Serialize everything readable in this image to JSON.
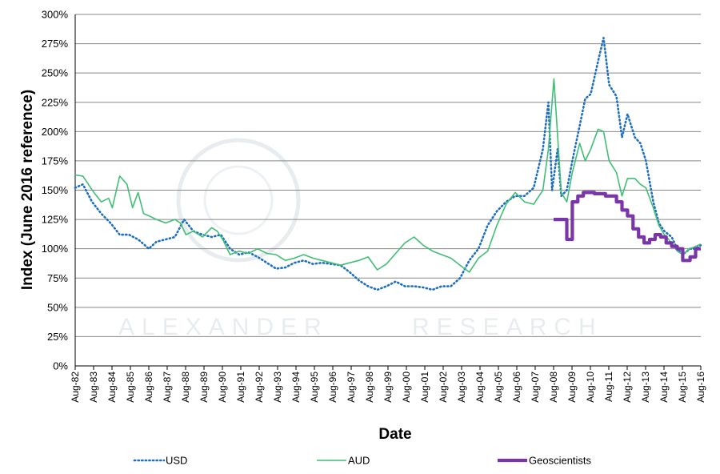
{
  "colors": {
    "usd": "#1f6fc0",
    "aud": "#3fbf74",
    "geo": "#7a35a8",
    "grid": "#888888",
    "watermark": "#e8ecef"
  },
  "watermark": {
    "left": "ALEXANDER",
    "right": "RESEARCH"
  },
  "chart_data": {
    "type": "line",
    "title": "",
    "xlabel": "Date",
    "ylabel": "Index (June  2016 reference)",
    "ylim": [
      0,
      300
    ],
    "yticks": [
      0,
      25,
      50,
      75,
      100,
      125,
      150,
      175,
      200,
      225,
      250,
      275,
      300
    ],
    "ytick_labels": [
      "0%",
      "25%",
      "50%",
      "75%",
      "100%",
      "125%",
      "150%",
      "175%",
      "200%",
      "225%",
      "250%",
      "275%",
      "300%"
    ],
    "xlim": [
      1982.583,
      2016.583
    ],
    "xtick_labels": [
      "Aug-82",
      "Aug-83",
      "Aug-84",
      "Aug-85",
      "Aug-86",
      "Aug-87",
      "Aug-88",
      "Aug-89",
      "Aug-90",
      "Aug-91",
      "Aug-92",
      "Aug-93",
      "Aug-94",
      "Aug-95",
      "Aug-96",
      "Aug-97",
      "Aug-98",
      "Aug-99",
      "Aug-00",
      "Aug-01",
      "Aug-02",
      "Aug-03",
      "Aug-04",
      "Aug-05",
      "Aug-06",
      "Aug-07",
      "Aug-08",
      "Aug-09",
      "Aug-10",
      "Aug-11",
      "Aug-12",
      "Aug-13",
      "Aug-14",
      "Aug-15",
      "Aug-16"
    ],
    "grid": true,
    "legend_position": "bottom",
    "series": [
      {
        "name": "USD",
        "style": "dotted",
        "x": [
          1982.58,
          1983.0,
          1983.5,
          1984.0,
          1984.5,
          1985.0,
          1985.5,
          1986.0,
          1986.3,
          1986.58,
          1987.0,
          1987.5,
          1988.0,
          1988.5,
          1989.0,
          1989.5,
          1990.0,
          1990.5,
          1991.0,
          1991.5,
          1992.0,
          1992.5,
          1993.0,
          1993.5,
          1994.0,
          1994.5,
          1995.0,
          1995.5,
          1996.0,
          1996.5,
          1997.0,
          1997.5,
          1998.0,
          1998.5,
          1999.0,
          1999.5,
          2000.0,
          2000.5,
          2001.0,
          2001.5,
          2002.0,
          2002.5,
          2003.0,
          2003.5,
          2004.0,
          2004.5,
          2005.0,
          2005.5,
          2006.0,
          2006.5,
          2007.0,
          2007.5,
          2008.0,
          2008.3,
          2008.5,
          2008.8,
          2009.0,
          2009.3,
          2009.6,
          2010.0,
          2010.3,
          2010.6,
          2011.0,
          2011.3,
          2011.6,
          2012.0,
          2012.3,
          2012.6,
          2013.0,
          2013.3,
          2013.6,
          2014.0,
          2014.3,
          2014.6,
          2015.0,
          2015.3,
          2015.6,
          2016.0,
          2016.3,
          2016.58
        ],
        "values": [
          152,
          155,
          140,
          130,
          122,
          112,
          112,
          108,
          104,
          100,
          106,
          108,
          110,
          125,
          115,
          112,
          110,
          112,
          100,
          95,
          97,
          93,
          88,
          83,
          84,
          88,
          90,
          87,
          88,
          87,
          86,
          80,
          73,
          68,
          65,
          68,
          72,
          68,
          68,
          67,
          65,
          68,
          68,
          75,
          90,
          100,
          120,
          132,
          140,
          145,
          145,
          152,
          185,
          225,
          150,
          185,
          145,
          150,
          175,
          205,
          228,
          232,
          260,
          280,
          240,
          230,
          195,
          215,
          195,
          190,
          175,
          140,
          122,
          115,
          110,
          100,
          95,
          100,
          100,
          103
        ]
      },
      {
        "name": "AUD",
        "style": "solid",
        "x": [
          1982.58,
          1983.0,
          1983.3,
          1983.6,
          1984.0,
          1984.4,
          1984.6,
          1985.0,
          1985.4,
          1985.7,
          1986.0,
          1986.3,
          1986.6,
          1987.0,
          1987.5,
          1988.0,
          1988.3,
          1988.6,
          1989.0,
          1989.5,
          1990.0,
          1990.3,
          1990.6,
          1991.0,
          1991.5,
          1992.0,
          1992.5,
          1993.0,
          1993.5,
          1994.0,
          1994.5,
          1995.0,
          1995.5,
          1996.0,
          1996.5,
          1997.0,
          1997.5,
          1998.0,
          1998.5,
          1999.0,
          1999.5,
          2000.0,
          2000.5,
          2001.0,
          2001.5,
          2002.0,
          2002.5,
          2003.0,
          2003.5,
          2004.0,
          2004.5,
          2005.0,
          2005.5,
          2006.0,
          2006.5,
          2007.0,
          2007.5,
          2008.0,
          2008.3,
          2008.6,
          2009.0,
          2009.3,
          2009.6,
          2010.0,
          2010.3,
          2010.6,
          2011.0,
          2011.3,
          2011.6,
          2012.0,
          2012.3,
          2012.6,
          2013.0,
          2013.3,
          2013.6,
          2014.0,
          2014.3,
          2014.6,
          2015.0,
          2015.3,
          2015.6,
          2016.0,
          2016.3,
          2016.58
        ],
        "values": [
          163,
          162,
          155,
          148,
          140,
          143,
          135,
          162,
          155,
          135,
          148,
          130,
          128,
          125,
          122,
          125,
          122,
          112,
          115,
          110,
          118,
          115,
          108,
          95,
          98,
          96,
          100,
          96,
          95,
          90,
          92,
          95,
          92,
          90,
          88,
          86,
          88,
          90,
          93,
          82,
          87,
          96,
          105,
          110,
          103,
          98,
          95,
          92,
          86,
          80,
          92,
          98,
          120,
          138,
          148,
          140,
          138,
          150,
          185,
          245,
          148,
          140,
          165,
          190,
          175,
          185,
          202,
          200,
          175,
          165,
          145,
          160,
          160,
          155,
          152,
          135,
          120,
          112,
          105,
          98,
          95,
          100,
          102,
          104
        ]
      },
      {
        "name": "Geoscientists",
        "style": "thick",
        "x": [
          2008.583,
          2009.0,
          2009.3,
          2009.6,
          2009.9,
          2010.2,
          2010.5,
          2010.8,
          2011.1,
          2011.4,
          2011.7,
          2012.0,
          2012.3,
          2012.6,
          2012.9,
          2013.2,
          2013.5,
          2013.8,
          2014.1,
          2014.4,
          2014.7,
          2015.0,
          2015.3,
          2015.6,
          2016.0,
          2016.3,
          2016.583
        ],
        "values": [
          125,
          125,
          108,
          140,
          145,
          148,
          148,
          147,
          147,
          145,
          145,
          140,
          133,
          128,
          117,
          110,
          105,
          108,
          112,
          110,
          105,
          102,
          100,
          90,
          93,
          100,
          100
        ]
      }
    ]
  }
}
